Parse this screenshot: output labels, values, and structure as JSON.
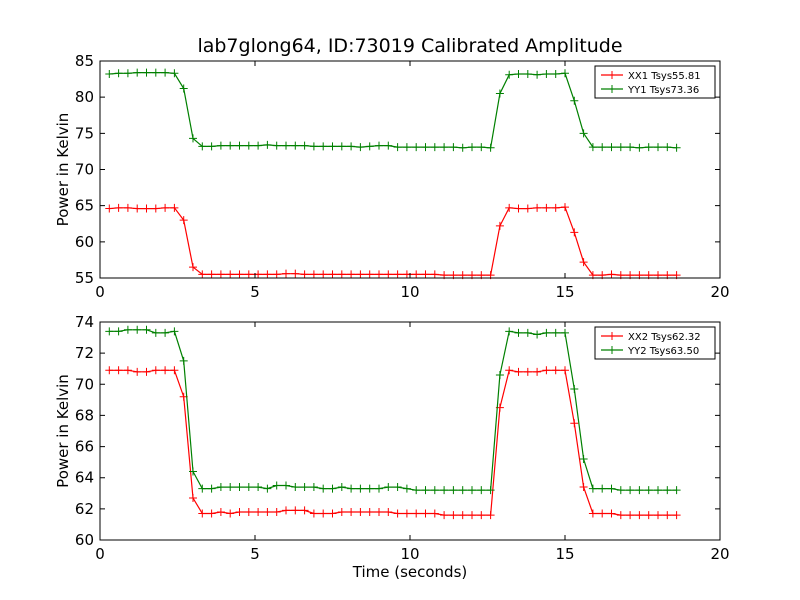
{
  "figure": {
    "title": "lab7glong64, ID:73019 Calibrated Amplitude"
  },
  "chart_data": [
    {
      "type": "line",
      "title": "lab7glong64, ID:73019 Calibrated Amplitude",
      "xlabel": "",
      "ylabel": "Power in Kelvin",
      "xlim": [
        0,
        20
      ],
      "ylim": [
        55,
        85
      ],
      "xticks": [
        0,
        5,
        10,
        15,
        20
      ],
      "yticks": [
        55,
        60,
        65,
        70,
        75,
        80,
        85
      ],
      "grid": false,
      "legend_position": "top-right",
      "x": [
        0.3,
        0.6,
        0.9,
        1.2,
        1.5,
        1.8,
        2.1,
        2.4,
        2.7,
        3.0,
        3.3,
        3.6,
        3.9,
        4.2,
        4.5,
        4.8,
        5.1,
        5.4,
        5.7,
        6.0,
        6.3,
        6.6,
        6.9,
        7.2,
        7.5,
        7.8,
        8.1,
        8.4,
        8.7,
        9.0,
        9.3,
        9.6,
        9.9,
        10.2,
        10.5,
        10.8,
        11.1,
        11.4,
        11.7,
        12.0,
        12.3,
        12.6,
        12.9,
        13.2,
        13.5,
        13.8,
        14.1,
        14.4,
        14.7,
        15.0,
        15.3,
        15.6,
        15.9,
        16.2,
        16.5,
        16.8,
        17.1,
        17.4,
        17.7,
        18.0,
        18.3,
        18.6
      ],
      "series": [
        {
          "name": "XX1 Tsys55.81",
          "color": "#ff0000",
          "values": [
            64.6,
            64.7,
            64.7,
            64.6,
            64.6,
            64.6,
            64.7,
            64.7,
            63.0,
            56.5,
            55.5,
            55.5,
            55.5,
            55.5,
            55.5,
            55.5,
            55.5,
            55.5,
            55.5,
            55.6,
            55.6,
            55.5,
            55.5,
            55.5,
            55.5,
            55.5,
            55.5,
            55.5,
            55.5,
            55.5,
            55.5,
            55.5,
            55.5,
            55.5,
            55.5,
            55.5,
            55.4,
            55.4,
            55.4,
            55.4,
            55.4,
            55.4,
            62.2,
            64.7,
            64.6,
            64.6,
            64.7,
            64.7,
            64.7,
            64.8,
            61.3,
            57.2,
            55.4,
            55.4,
            55.5,
            55.4,
            55.4,
            55.4,
            55.4,
            55.4,
            55.4,
            55.4
          ]
        },
        {
          "name": "YY1 Tsys73.36",
          "color": "#008000",
          "values": [
            83.2,
            83.3,
            83.3,
            83.4,
            83.4,
            83.4,
            83.4,
            83.3,
            81.2,
            74.3,
            73.2,
            73.2,
            73.3,
            73.3,
            73.3,
            73.3,
            73.3,
            73.4,
            73.3,
            73.3,
            73.3,
            73.3,
            73.2,
            73.2,
            73.2,
            73.2,
            73.2,
            73.1,
            73.2,
            73.3,
            73.3,
            73.1,
            73.1,
            73.1,
            73.1,
            73.1,
            73.1,
            73.1,
            73.0,
            73.1,
            73.1,
            73.0,
            80.5,
            83.1,
            83.2,
            83.2,
            83.1,
            83.2,
            83.2,
            83.3,
            79.5,
            75.0,
            73.1,
            73.1,
            73.1,
            73.1,
            73.1,
            73.0,
            73.1,
            73.1,
            73.1,
            73.0
          ]
        }
      ]
    },
    {
      "type": "line",
      "title": "",
      "xlabel": "Time (seconds)",
      "ylabel": "Power in Kelvin",
      "xlim": [
        0,
        20
      ],
      "ylim": [
        60,
        74
      ],
      "xticks": [
        0,
        5,
        10,
        15,
        20
      ],
      "yticks": [
        60,
        62,
        64,
        66,
        68,
        70,
        72,
        74
      ],
      "grid": false,
      "legend_position": "top-right",
      "x": [
        0.3,
        0.6,
        0.9,
        1.2,
        1.5,
        1.8,
        2.1,
        2.4,
        2.7,
        3.0,
        3.3,
        3.6,
        3.9,
        4.2,
        4.5,
        4.8,
        5.1,
        5.4,
        5.7,
        6.0,
        6.3,
        6.6,
        6.9,
        7.2,
        7.5,
        7.8,
        8.1,
        8.4,
        8.7,
        9.0,
        9.3,
        9.6,
        9.9,
        10.2,
        10.5,
        10.8,
        11.1,
        11.4,
        11.7,
        12.0,
        12.3,
        12.6,
        12.9,
        13.2,
        13.5,
        13.8,
        14.1,
        14.4,
        14.7,
        15.0,
        15.3,
        15.6,
        15.9,
        16.2,
        16.5,
        16.8,
        17.1,
        17.4,
        17.7,
        18.0,
        18.3,
        18.6
      ],
      "series": [
        {
          "name": "XX2 Tsys62.32",
          "color": "#ff0000",
          "values": [
            70.9,
            70.9,
            70.9,
            70.8,
            70.8,
            70.9,
            70.9,
            70.9,
            69.2,
            62.7,
            61.7,
            61.7,
            61.8,
            61.7,
            61.8,
            61.8,
            61.8,
            61.8,
            61.8,
            61.9,
            61.9,
            61.9,
            61.7,
            61.7,
            61.7,
            61.8,
            61.8,
            61.8,
            61.8,
            61.8,
            61.8,
            61.7,
            61.7,
            61.7,
            61.7,
            61.7,
            61.6,
            61.6,
            61.6,
            61.6,
            61.6,
            61.6,
            68.5,
            70.9,
            70.8,
            70.8,
            70.8,
            70.9,
            70.9,
            70.9,
            67.5,
            63.4,
            61.7,
            61.7,
            61.7,
            61.6,
            61.6,
            61.6,
            61.6,
            61.6,
            61.6,
            61.6
          ]
        },
        {
          "name": "YY2 Tsys63.50",
          "color": "#008000",
          "values": [
            73.4,
            73.4,
            73.5,
            73.5,
            73.5,
            73.3,
            73.3,
            73.4,
            71.5,
            64.4,
            63.3,
            63.3,
            63.4,
            63.4,
            63.4,
            63.4,
            63.4,
            63.3,
            63.5,
            63.5,
            63.4,
            63.4,
            63.4,
            63.3,
            63.3,
            63.4,
            63.3,
            63.3,
            63.3,
            63.3,
            63.4,
            63.4,
            63.3,
            63.2,
            63.2,
            63.2,
            63.2,
            63.2,
            63.2,
            63.2,
            63.2,
            63.2,
            70.6,
            73.4,
            73.3,
            73.3,
            73.2,
            73.3,
            73.3,
            73.3,
            69.7,
            65.2,
            63.3,
            63.3,
            63.3,
            63.2,
            63.2,
            63.2,
            63.2,
            63.2,
            63.2,
            63.2
          ]
        }
      ]
    }
  ]
}
